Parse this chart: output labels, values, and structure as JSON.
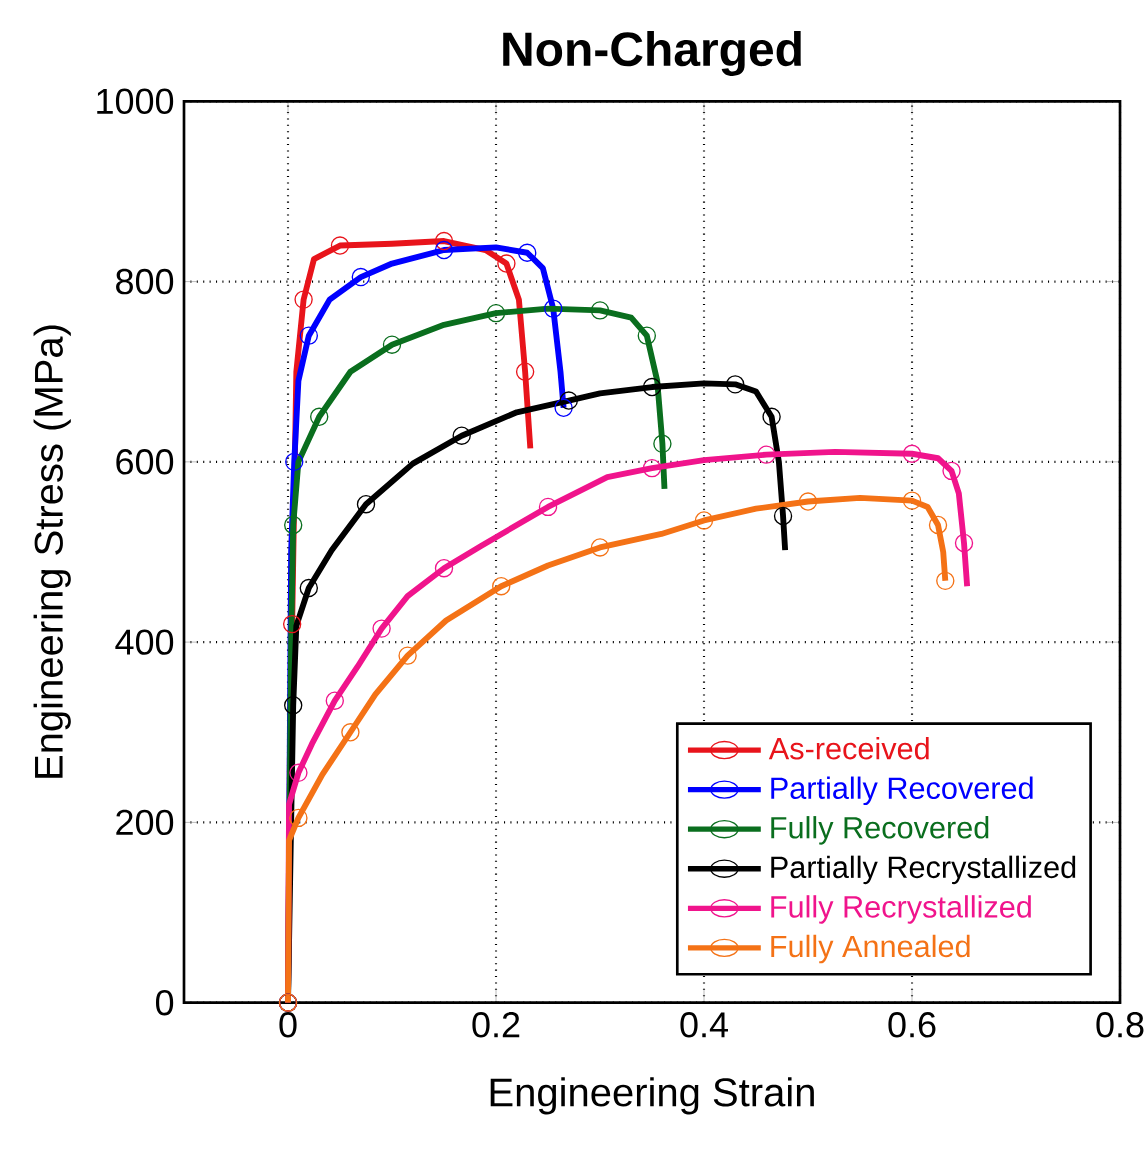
{
  "chart_data": {
    "type": "line",
    "title": "Non-Charged",
    "xlabel": "Engineering Strain",
    "ylabel": "Engineering Stress (MPa)",
    "xlim": [
      -0.1,
      0.8
    ],
    "ylim": [
      0,
      1000
    ],
    "xticks": [
      0,
      0.2,
      0.4,
      0.6,
      0.8
    ],
    "yticks": [
      0,
      200,
      400,
      600,
      800,
      1000
    ],
    "grid": true,
    "legend": "bottom right",
    "marker": "circle",
    "line_style": "solid",
    "series": [
      {
        "name": "As-received",
        "color": "#e8141b",
        "x": [
          0,
          0.002,
          0.004,
          0.008,
          0.015,
          0.025,
          0.05,
          0.1,
          0.15,
          0.19,
          0.21,
          0.222,
          0.228,
          0.233
        ],
        "values": [
          0,
          300,
          420,
          700,
          780,
          825,
          840,
          842,
          845,
          835,
          820,
          780,
          700,
          615
        ]
      },
      {
        "name": "Partially Recovered",
        "color": "#0000ff",
        "x": [
          0,
          0.003,
          0.006,
          0.01,
          0.02,
          0.04,
          0.07,
          0.1,
          0.15,
          0.2,
          0.23,
          0.245,
          0.255,
          0.262,
          0.265
        ],
        "values": [
          0,
          500,
          600,
          690,
          740,
          780,
          805,
          820,
          835,
          838,
          832,
          815,
          770,
          700,
          660
        ]
      },
      {
        "name": "Fully Recovered",
        "color": "#0a6e1e",
        "x": [
          0,
          0.003,
          0.005,
          0.01,
          0.03,
          0.06,
          0.1,
          0.15,
          0.2,
          0.25,
          0.3,
          0.33,
          0.345,
          0.355,
          0.36,
          0.362
        ],
        "values": [
          0,
          400,
          530,
          600,
          650,
          700,
          730,
          752,
          765,
          770,
          768,
          760,
          740,
          690,
          620,
          570
        ]
      },
      {
        "name": "Partially Recrystallized",
        "color": "#000000",
        "x": [
          0,
          0.003,
          0.005,
          0.008,
          0.02,
          0.042,
          0.075,
          0.12,
          0.167,
          0.22,
          0.27,
          0.3,
          0.35,
          0.4,
          0.43,
          0.45,
          0.465,
          0.472,
          0.476,
          0.478
        ],
        "values": [
          0,
          200,
          330,
          418,
          460,
          502,
          553,
          598,
          629,
          655,
          668,
          676,
          683,
          687,
          686,
          678,
          650,
          600,
          540,
          502
        ]
      },
      {
        "name": "Fully Recrystallized",
        "color": "#f0148c",
        "x": [
          0,
          0.001,
          0.01,
          0.023,
          0.045,
          0.067,
          0.09,
          0.115,
          0.15,
          0.186,
          0.25,
          0.307,
          0.35,
          0.4,
          0.46,
          0.526,
          0.6,
          0.625,
          0.638,
          0.645,
          0.65,
          0.653
        ],
        "values": [
          0,
          220,
          255,
          287,
          335,
          373,
          415,
          451,
          482,
          507,
          550,
          583,
          593,
          602,
          608,
          611,
          609,
          604,
          590,
          565,
          510,
          462
        ]
      },
      {
        "name": "Fully Annealed",
        "color": "#f47216",
        "x": [
          0,
          0.001,
          0.01,
          0.033,
          0.06,
          0.084,
          0.115,
          0.152,
          0.205,
          0.25,
          0.3,
          0.359,
          0.4,
          0.45,
          0.5,
          0.55,
          0.6,
          0.615,
          0.625,
          0.63,
          0.632
        ],
        "values": [
          0,
          180,
          205,
          253,
          300,
          342,
          385,
          424,
          462,
          485,
          505,
          520,
          535,
          548,
          556,
          560,
          557,
          550,
          530,
          500,
          468
        ]
      }
    ]
  }
}
